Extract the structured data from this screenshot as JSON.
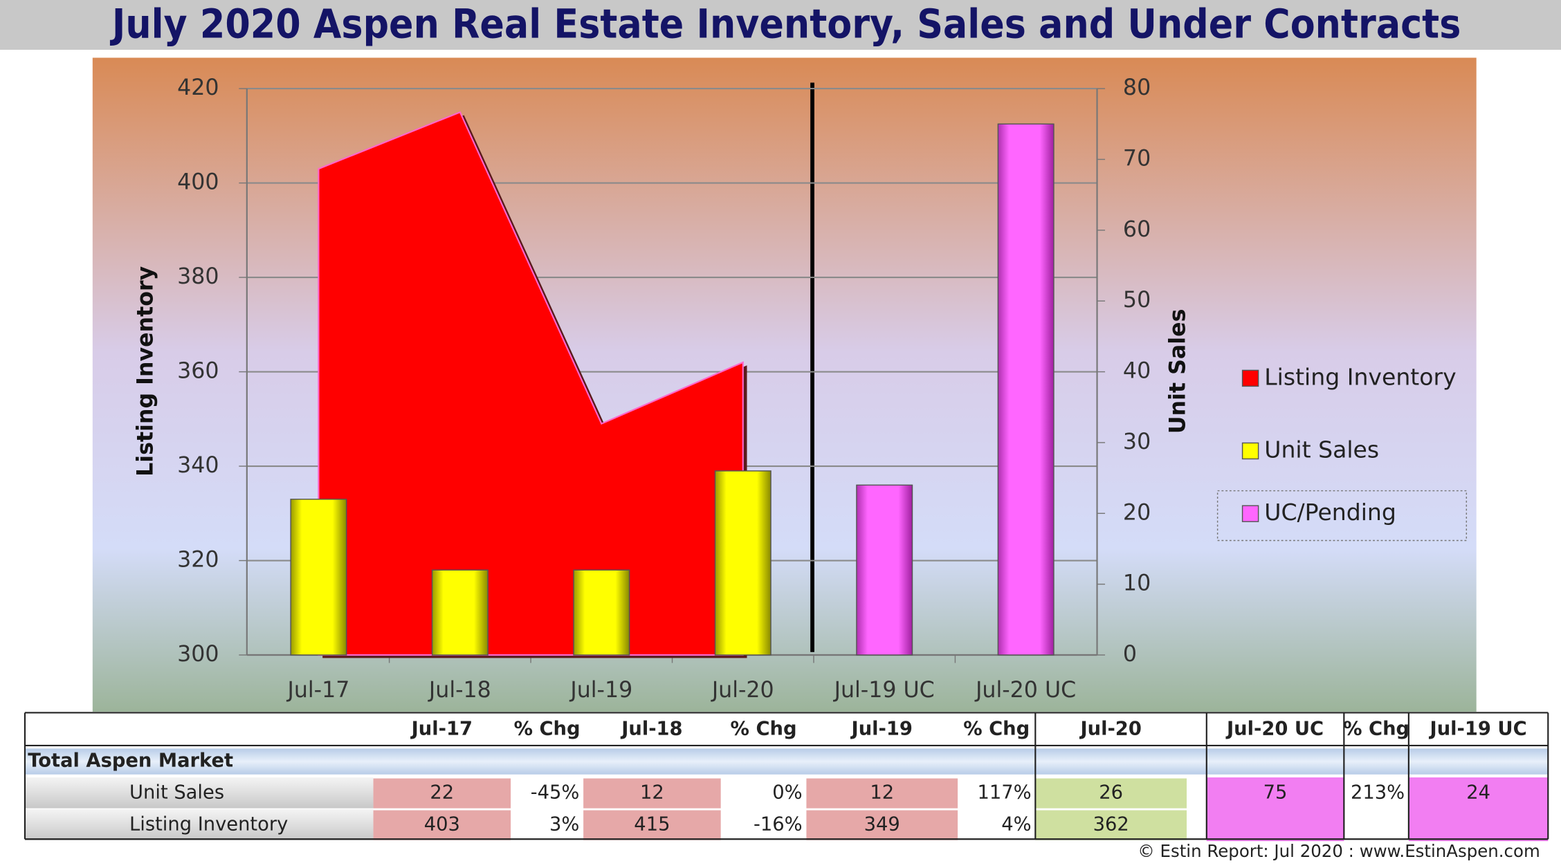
{
  "chart_data": {
    "type": "combo",
    "title": "July 2020 Aspen Real Estate Inventory, Sales and Under Contracts",
    "ylabel": "Listing Inventory",
    "y2label": "Unit Sales",
    "categories": [
      "Jul-17",
      "Jul-18",
      "Jul-19",
      "Jul-20",
      "Jul-19 UC",
      "Jul-20 UC"
    ],
    "series": [
      {
        "name": "Listing Inventory",
        "type": "area",
        "color": "#ff0000",
        "axis": "y",
        "values": [
          403,
          415,
          349,
          362,
          null,
          null
        ]
      },
      {
        "name": "Unit Sales",
        "type": "bar",
        "color": "#ffff00",
        "axis": "y2",
        "values": [
          22,
          12,
          12,
          26,
          null,
          null
        ]
      },
      {
        "name": "UC/Pending",
        "type": "bar",
        "color": "#ff66ff",
        "axis": "y2",
        "values": [
          null,
          null,
          null,
          null,
          24,
          75
        ]
      }
    ],
    "ylim": [
      300,
      420
    ],
    "yticks": [
      300,
      320,
      340,
      360,
      380,
      400,
      420
    ],
    "y2lim": [
      0,
      80
    ],
    "y2ticks": [
      0,
      10,
      20,
      30,
      40,
      50,
      60,
      70,
      80
    ],
    "grid": true,
    "legend": "right"
  },
  "table": {
    "columns": [
      "Jul-17",
      "% Chg",
      "Jul-18",
      "% Chg",
      "Jul-19",
      "% Chg",
      "Jul-20",
      "Jul-20 UC",
      "% Chg",
      "Jul-19 UC"
    ],
    "section": "Total Aspen Market",
    "rows": [
      {
        "label": "Unit Sales",
        "cells": [
          22,
          "-45%",
          12,
          "0%",
          12,
          "117%",
          26,
          75,
          "213%",
          24
        ]
      },
      {
        "label": "Listing Inventory",
        "cells": [
          403,
          "3%",
          415,
          "-16%",
          349,
          "4%",
          362,
          null,
          null,
          null
        ]
      }
    ]
  },
  "footer": "© Estin Report: Jul 2020 : www.EstinAspen.com"
}
